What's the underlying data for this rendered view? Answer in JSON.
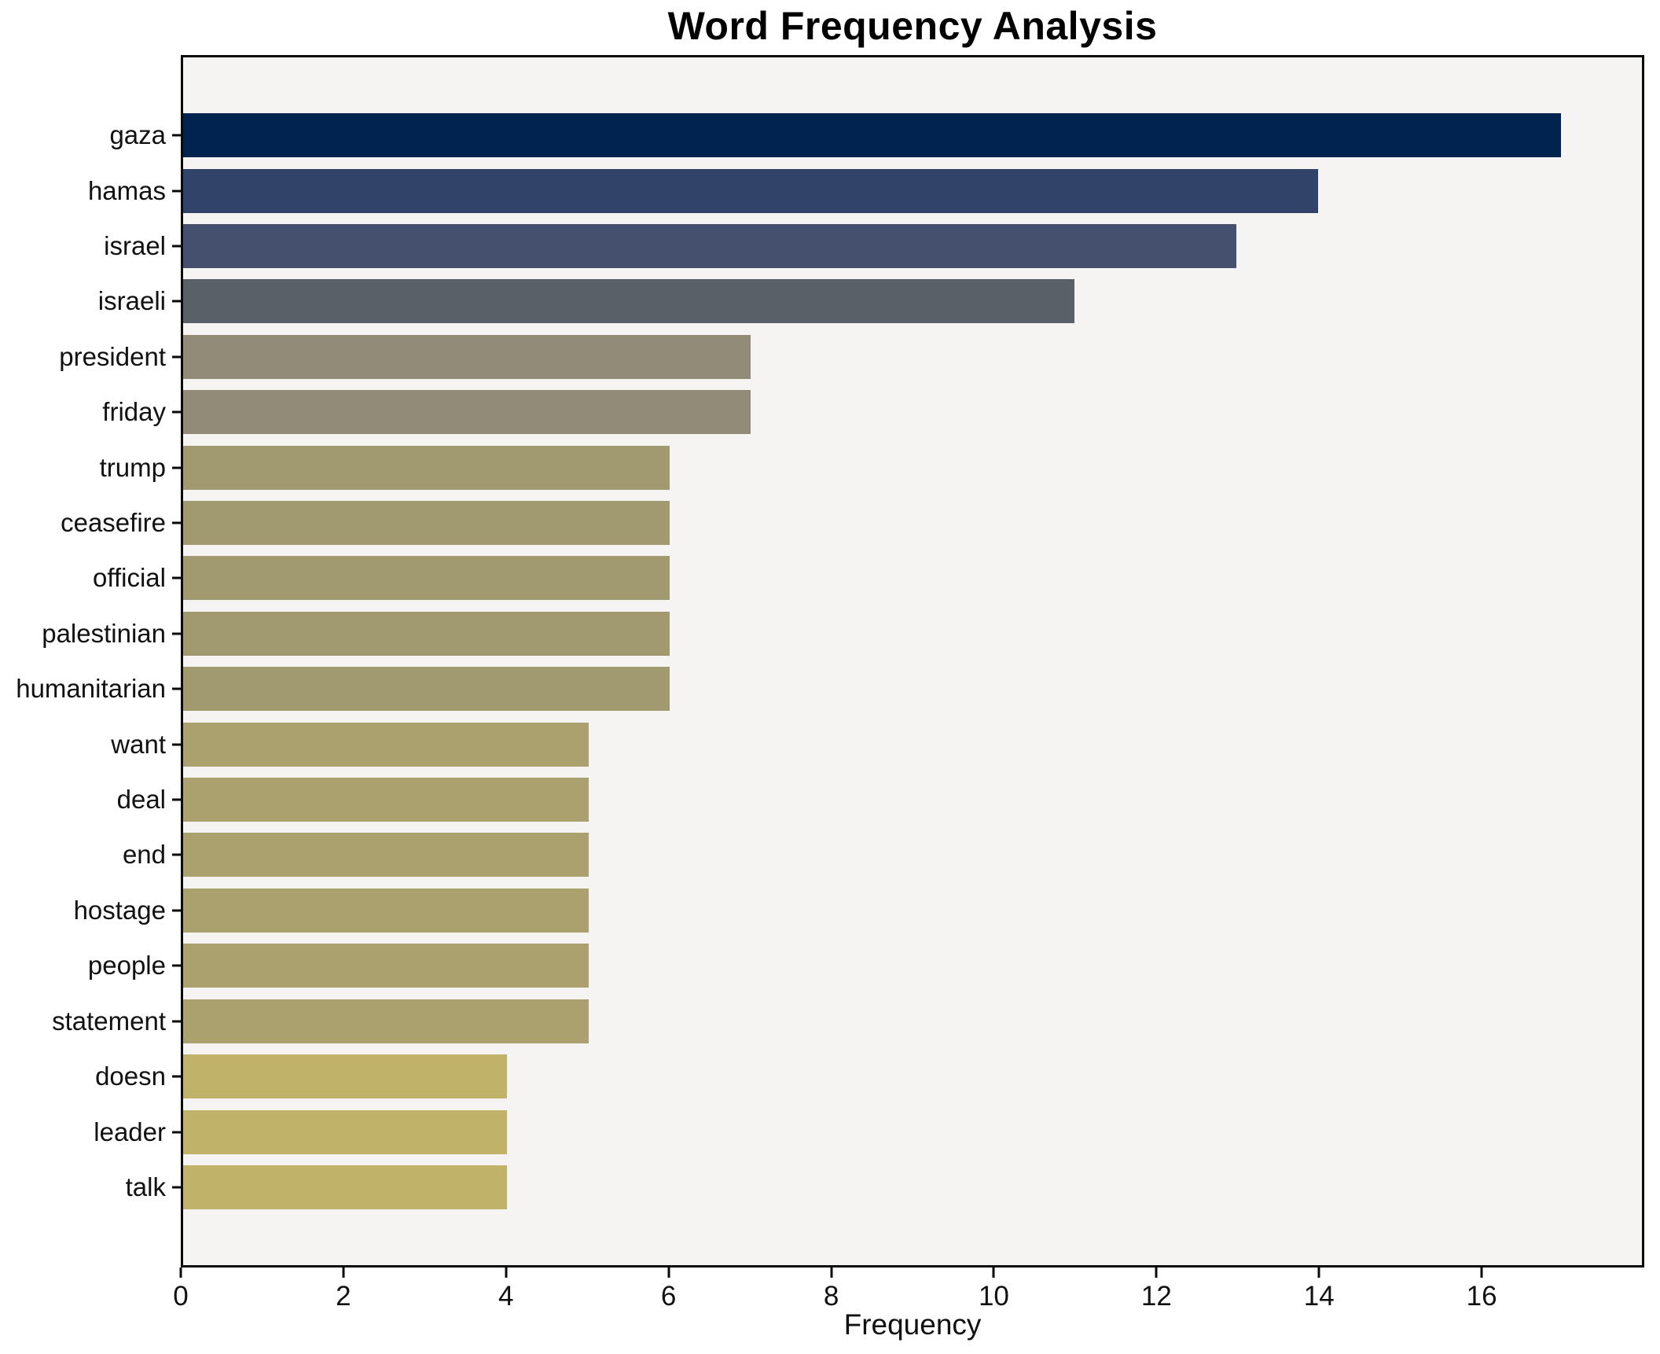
{
  "chart_data": {
    "type": "bar",
    "orientation": "horizontal",
    "title": "Word Frequency Analysis",
    "xlabel": "Frequency",
    "ylabel": "",
    "xlim": [
      0,
      18
    ],
    "x_ticks": [
      0,
      2,
      4,
      6,
      8,
      10,
      12,
      14,
      16
    ],
    "grid": false,
    "legend": "none",
    "plot_bg_color": "#f5f4f2",
    "spine_color": "#0a0a0a",
    "categories": [
      "gaza",
      "hamas",
      "israel",
      "israeli",
      "president",
      "friday",
      "trump",
      "ceasefire",
      "official",
      "palestinian",
      "humanitarian",
      "want",
      "deal",
      "end",
      "hostage",
      "people",
      "statement",
      "doesn",
      "leader",
      "talk"
    ],
    "values": [
      17,
      14,
      13,
      11,
      7,
      7,
      6,
      6,
      6,
      6,
      6,
      5,
      5,
      5,
      5,
      5,
      5,
      4,
      4,
      4
    ],
    "bar_colors": [
      "#00234f",
      "#32436a",
      "#45506e",
      "#5a6068",
      "#928b78",
      "#928b78",
      "#a19a71",
      "#a19a71",
      "#a19a71",
      "#a19a71",
      "#a19a71",
      "#aba16f",
      "#aba16f",
      "#aba16f",
      "#aba16f",
      "#aba16f",
      "#aba16f",
      "#c0b269",
      "#c0b269",
      "#c0b269"
    ]
  }
}
